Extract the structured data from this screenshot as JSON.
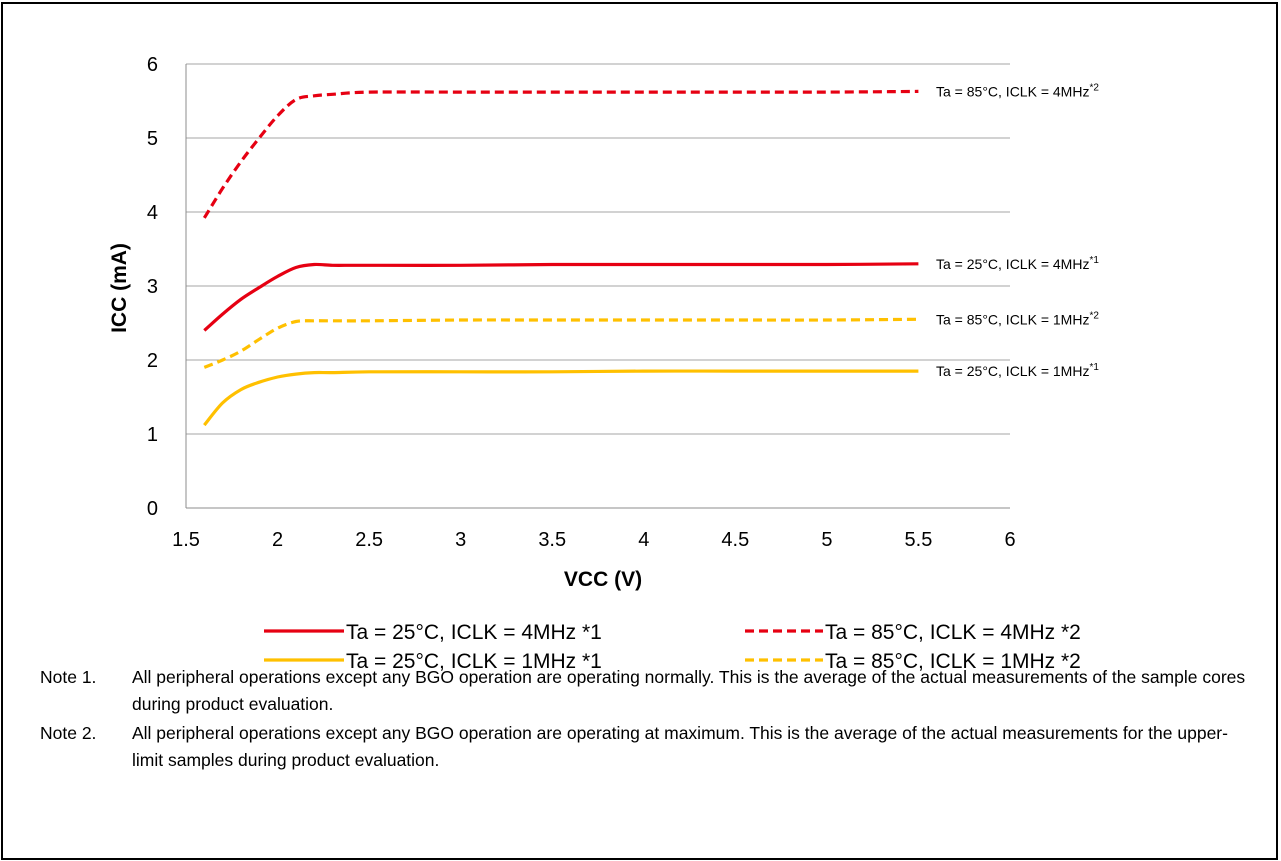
{
  "chart_data": {
    "type": "line",
    "xlabel": "VCC (V)",
    "ylabel": "ICC (mA)",
    "xlim": [
      1.5,
      6
    ],
    "ylim": [
      0,
      6
    ],
    "xticks": [
      "1.5",
      "2",
      "2.5",
      "3",
      "3.5",
      "4",
      "4.5",
      "5",
      "5.5",
      "6"
    ],
    "yticks": [
      "0",
      "1",
      "2",
      "3",
      "4",
      "5",
      "6"
    ],
    "grid": "horizontal",
    "legend_position": "bottom",
    "series": [
      {
        "name": "Ta = 25°C, ICLK = 4MHz *1",
        "end_label": "Ta = 25°C, ICLK = 4MHz",
        "end_label_sup": "*1",
        "color": "#e60012",
        "dash": false,
        "x": [
          1.6,
          1.7,
          1.8,
          1.9,
          2.0,
          2.1,
          2.2,
          2.3,
          2.4,
          2.5,
          3.0,
          3.5,
          4.0,
          4.5,
          5.0,
          5.5
        ],
        "y": [
          2.4,
          2.62,
          2.82,
          2.98,
          3.13,
          3.25,
          3.29,
          3.28,
          3.28,
          3.28,
          3.28,
          3.29,
          3.29,
          3.29,
          3.29,
          3.3
        ]
      },
      {
        "name": "Ta = 85°C, ICLK = 4MHz *2",
        "end_label": "Ta = 85°C, ICLK = 4MHz",
        "end_label_sup": "*2",
        "color": "#e60012",
        "dash": true,
        "x": [
          1.6,
          1.7,
          1.8,
          1.9,
          2.0,
          2.1,
          2.2,
          2.3,
          2.5,
          3.0,
          3.5,
          4.0,
          4.5,
          5.0,
          5.5
        ],
        "y": [
          3.92,
          4.32,
          4.68,
          5.0,
          5.3,
          5.52,
          5.57,
          5.59,
          5.62,
          5.62,
          5.62,
          5.62,
          5.62,
          5.62,
          5.63
        ]
      },
      {
        "name": "Ta = 25°C, ICLK = 1MHz *1",
        "end_label": "Ta = 25°C, ICLK = 1MHz",
        "end_label_sup": "*1",
        "color": "#ffc000",
        "dash": false,
        "x": [
          1.6,
          1.7,
          1.8,
          1.9,
          2.0,
          2.1,
          2.2,
          2.3,
          2.5,
          3.0,
          3.5,
          4.0,
          4.5,
          5.0,
          5.5
        ],
        "y": [
          1.12,
          1.42,
          1.6,
          1.7,
          1.77,
          1.81,
          1.83,
          1.83,
          1.84,
          1.84,
          1.84,
          1.85,
          1.85,
          1.85,
          1.85
        ]
      },
      {
        "name": "Ta = 85°C, ICLK = 1MHz *2",
        "end_label": "Ta = 85°C, ICLK = 1MHz",
        "end_label_sup": "*2",
        "color": "#ffc000",
        "dash": true,
        "x": [
          1.6,
          1.7,
          1.8,
          1.9,
          2.0,
          2.1,
          2.2,
          2.3,
          2.5,
          3.0,
          3.5,
          4.0,
          4.5,
          5.0,
          5.5
        ],
        "y": [
          1.9,
          2.0,
          2.12,
          2.28,
          2.43,
          2.52,
          2.53,
          2.53,
          2.53,
          2.54,
          2.54,
          2.54,
          2.54,
          2.54,
          2.55
        ]
      }
    ]
  },
  "notes": [
    {
      "number": "Note 1.",
      "text": "All peripheral operations except any BGO operation are operating normally. This is the average of the actual measurements of the sample cores during product evaluation."
    },
    {
      "number": "Note 2.",
      "text": "All peripheral operations except any BGO operation are operating at maximum. This is the average of the actual measurements for the upper-limit samples during product evaluation."
    }
  ]
}
